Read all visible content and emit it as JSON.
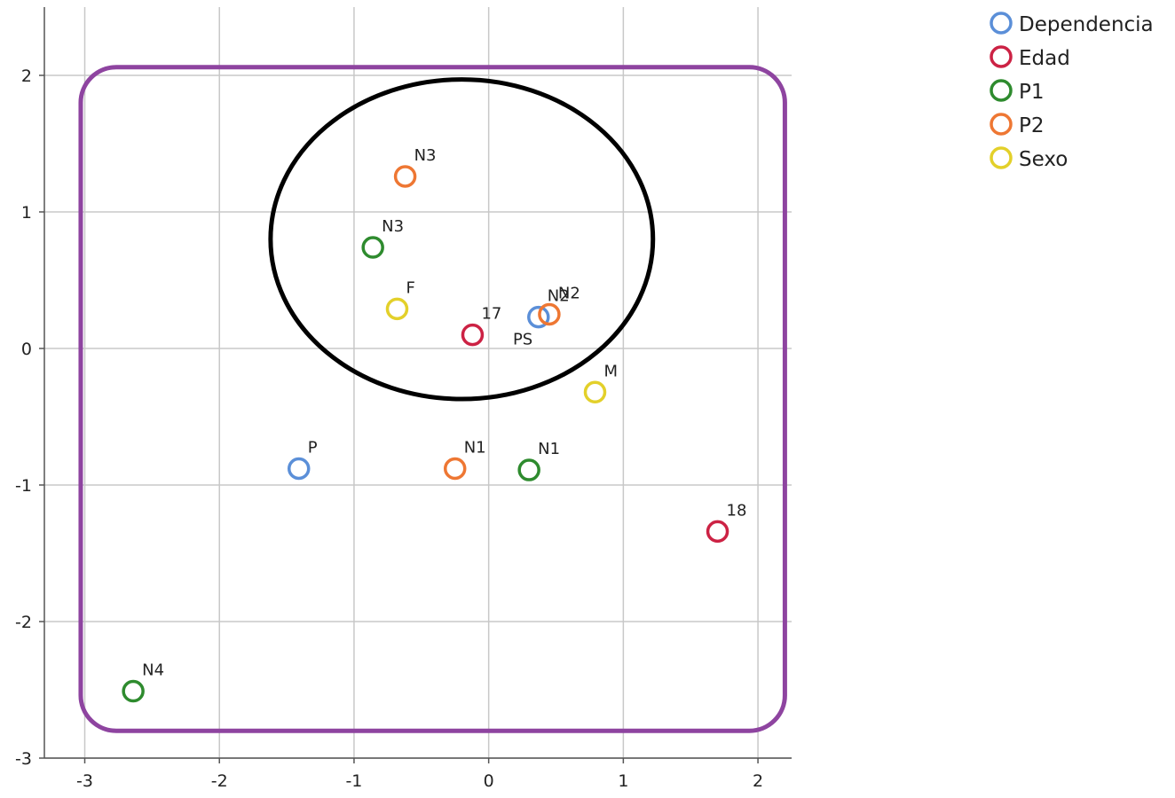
{
  "chart_data": {
    "type": "scatter",
    "title": "",
    "xlabel": "",
    "ylabel": "",
    "xlim": [
      -3.3,
      2.25
    ],
    "ylim": [
      -3,
      2.5
    ],
    "x_ticks": [
      "-3",
      "-2",
      "-1",
      "0",
      "1",
      "2"
    ],
    "y_ticks": [
      "2",
      "1",
      "0",
      "-1",
      "-2",
      "-3"
    ],
    "grid": true,
    "legend_position": "top-right",
    "series": [
      {
        "name": "Dependencia",
        "color": "#5b8fd8",
        "points": [
          {
            "x": 0.37,
            "y": 0.23,
            "label": "N2"
          },
          {
            "x": -1.41,
            "y": -0.88,
            "label": "P"
          }
        ]
      },
      {
        "name": "Edad",
        "color": "#cc2244",
        "points": [
          {
            "x": -0.12,
            "y": 0.1,
            "label": "17"
          },
          {
            "x": 1.7,
            "y": -1.34,
            "label": "18"
          }
        ]
      },
      {
        "name": "P1",
        "color": "#2e8b2e",
        "points": [
          {
            "x": -0.86,
            "y": 0.74,
            "label": "N3"
          },
          {
            "x": 0.3,
            "y": -0.89,
            "label": "N1"
          },
          {
            "x": -2.64,
            "y": -2.51,
            "label": "N4"
          }
        ]
      },
      {
        "name": "P2",
        "color": "#ee7733",
        "points": [
          {
            "x": -0.62,
            "y": 1.26,
            "label": "N3"
          },
          {
            "x": 0.45,
            "y": 0.25,
            "label": "N2"
          },
          {
            "x": -0.25,
            "y": -0.88,
            "label": "N1"
          }
        ]
      },
      {
        "name": "Sexo",
        "color": "#e3d02a",
        "points": [
          {
            "x": -0.68,
            "y": 0.29,
            "label": "F"
          },
          {
            "x": 0.79,
            "y": -0.32,
            "label": "M"
          }
        ]
      }
    ],
    "annotations": [
      {
        "type": "text",
        "text": "PS",
        "x": 0.18,
        "y": 0.03
      },
      {
        "type": "rounded-rectangle",
        "color": "#8e44a0",
        "x": [
          -3.03,
          2.2
        ],
        "y": [
          -2.8,
          2.06
        ]
      },
      {
        "type": "ellipse",
        "color": "#000000",
        "cx": -0.2,
        "cy": 0.8,
        "rx": 1.42,
        "ry": 1.17
      }
    ]
  }
}
